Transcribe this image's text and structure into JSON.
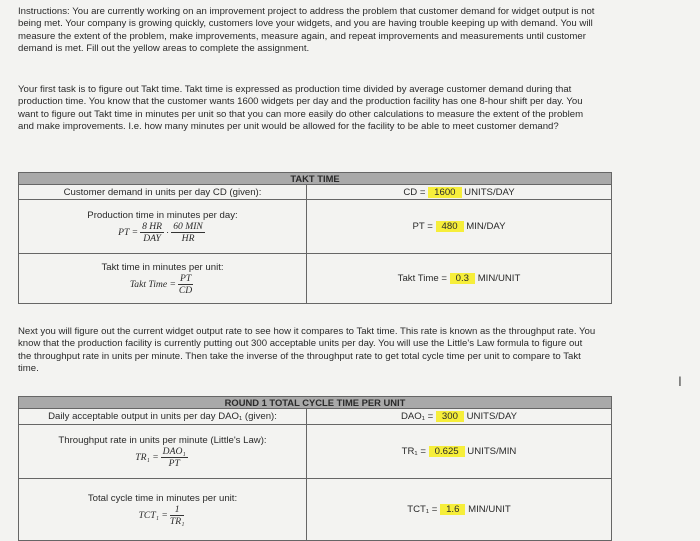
{
  "intro": "Instructions: You are currently working on an improvement project to address the problem that customer demand for widget output is not being met. Your company is growing quickly, customers love your widgets, and you are having trouble keeping up with demand. You will measure the extent of the problem, make improvements, measure again, and repeat improvements and measurements until customer demand is met. Fill out the yellow areas to complete the assignment.",
  "task1": "Your first task is to figure out Takt time. Takt time is expressed as production time divided by average customer demand during that production time. You know that the customer wants 1600 widgets per day and the production facility has one 8-hour shift per day. You want to figure out Takt time in minutes per unit so that you can more easily do other calculations to measure the extent of the problem and make improvements. I.e. how many minutes per unit would be allowed for the facility to be able to meet customer demand?",
  "takt": {
    "title": "TAKT TIME",
    "r1l": "Customer demand in units per day CD (given):",
    "r1pre": "CD =",
    "r1val": "1600",
    "r1unit": "UNITS/DAY",
    "r2l": "Production time in minutes per day:",
    "r2lhs": "PT =",
    "r2n1": "8 HR",
    "r2d1": "DAY",
    "r2n2": "60 MIN",
    "r2d2": "HR",
    "r2pre": "PT =",
    "r2val": "480",
    "r2unit": "MIN/DAY",
    "r3l": "Takt time in minutes per unit:",
    "r3lhs": "Takt Time =",
    "r3n": "PT",
    "r3d": "CD",
    "r3pre": "Takt Time =",
    "r3val": "0.3",
    "r3unit": "MIN/UNIT"
  },
  "task2": "Next you will figure out the current widget output rate to see how it compares to Takt time. This rate is known as the throughput rate. You know that the production facility is currently putting out 300 acceptable units per day. You will use the Little's Law formula to figure out the throughput rate in units per minute. Then take the inverse of the throughput rate to get total cycle time per unit to compare to Takt time.",
  "round1": {
    "title": "ROUND 1 TOTAL CYCLE TIME PER UNIT",
    "r1l": "Daily acceptable output in units per day DAO₁ (given):",
    "r1pre": "DAO₁ =",
    "r1val": "300",
    "r1unit": "UNITS/DAY",
    "r2l": "Throughput rate in units per minute (Little's Law):",
    "r2lhs": "TR₁ =",
    "r2n": "DAO₁",
    "r2d": "PT",
    "r2pre": "TR₁ =",
    "r2val": "0.625",
    "r2unit": "UNITS/MIN",
    "r3l": "Total cycle time in minutes per unit:",
    "r3lhs": "TCT₁ =",
    "r3n": "1",
    "r3d": "TR₁",
    "r3pre": "TCT₁ =",
    "r3val": "1.6",
    "r3unit": "MIN/UNIT"
  },
  "highlight_color": "#f6ee3a"
}
